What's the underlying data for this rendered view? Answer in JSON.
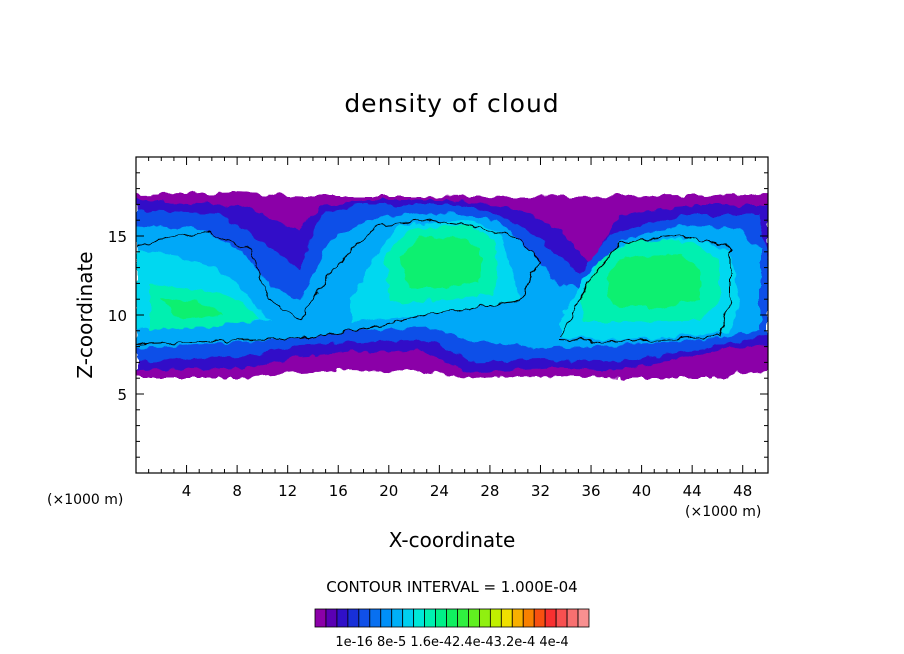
{
  "chart_data": {
    "type": "heatmap",
    "title": "density of cloud",
    "xlabel": "X-coordinate",
    "ylabel": "Z-coordinate",
    "x_unit": "(×1000 m)",
    "y_unit": "(×1000 m)",
    "xlim": [
      0,
      50
    ],
    "ylim": [
      0,
      20
    ],
    "x_ticks": [
      4,
      8,
      12,
      16,
      20,
      24,
      28,
      32,
      36,
      40,
      44,
      48
    ],
    "y_ticks": [
      5,
      10,
      15
    ],
    "contour_interval": "CONTOUR INTERVAL = 1.000E-04",
    "colorbar_labels": [
      "1e-16",
      "8e-5",
      "1.6e-4",
      "2.4e-4",
      "3.2e-4",
      "4e-4"
    ],
    "colorbar_label_text": "1e-16  8e-5  1.6e-42.4e-43.2e-4 4e-4",
    "colorbar_colors": [
      "#8b00a8",
      "#5a00b4",
      "#3010c8",
      "#1830d8",
      "#1050e8",
      "#0870f0",
      "#0090f8",
      "#00b0f8",
      "#00d0f0",
      "#00e8d8",
      "#00f0b0",
      "#00f088",
      "#10f060",
      "#30f040",
      "#60f020",
      "#90f010",
      "#c0f000",
      "#f0e000",
      "#f8b000",
      "#f88000",
      "#f85010",
      "#f83030",
      "#f85050",
      "#f87070",
      "#f89090"
    ],
    "cloud_top_km": 17.5,
    "cloud_base_km": 6.2,
    "max_density_regions": [
      {
        "x_range": [
          20,
          28
        ],
        "z_range": [
          10.5,
          15.5
        ],
        "level": "1.6e-4"
      },
      {
        "x_range": [
          35,
          46
        ],
        "z_range": [
          8.5,
          15
        ],
        "level": "1.6e-4"
      },
      {
        "x_range": [
          0,
          10
        ],
        "z_range": [
          8,
          12
        ],
        "level": "1.2e-4"
      }
    ]
  }
}
